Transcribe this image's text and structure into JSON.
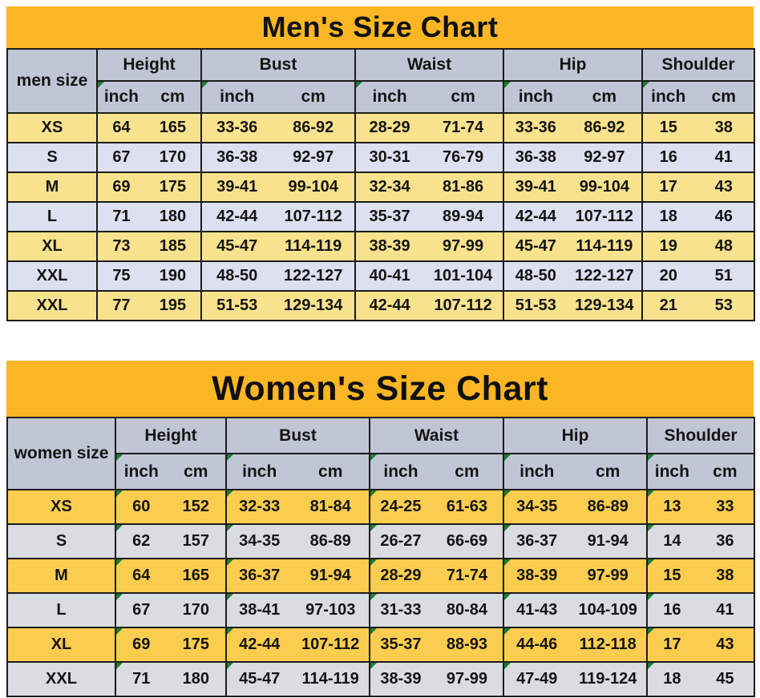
{
  "colors": {
    "title_bg": "#fbb625",
    "header_bg": "#c0c6d5",
    "men_yellow": "#f9e28d",
    "men_blue": "#dce0f0",
    "women_yellow": "#fbcd4e",
    "women_gray": "#d9dce1",
    "border": "#1c1c1c",
    "marker_green": "#1e7b34"
  },
  "men_chart": {
    "title": "Men's Size Chart",
    "corner_label": "men size",
    "columns": [
      "Height",
      "Bust",
      "Waist",
      "Hip",
      "Shoulder"
    ],
    "units": [
      "inch",
      "cm"
    ],
    "rows": [
      {
        "size": "XS",
        "cells": [
          [
            "64",
            "165"
          ],
          [
            "33-36",
            "86-92"
          ],
          [
            "28-29",
            "71-74"
          ],
          [
            "33-36",
            "86-92"
          ],
          [
            "15",
            "38"
          ]
        ]
      },
      {
        "size": "S",
        "cells": [
          [
            "67",
            "170"
          ],
          [
            "36-38",
            "92-97"
          ],
          [
            "30-31",
            "76-79"
          ],
          [
            "36-38",
            "92-97"
          ],
          [
            "16",
            "41"
          ]
        ]
      },
      {
        "size": "M",
        "cells": [
          [
            "69",
            "175"
          ],
          [
            "39-41",
            "99-104"
          ],
          [
            "32-34",
            "81-86"
          ],
          [
            "39-41",
            "99-104"
          ],
          [
            "17",
            "43"
          ]
        ]
      },
      {
        "size": "L",
        "cells": [
          [
            "71",
            "180"
          ],
          [
            "42-44",
            "107-112"
          ],
          [
            "35-37",
            "89-94"
          ],
          [
            "42-44",
            "107-112"
          ],
          [
            "18",
            "46"
          ]
        ]
      },
      {
        "size": "XL",
        "cells": [
          [
            "73",
            "185"
          ],
          [
            "45-47",
            "114-119"
          ],
          [
            "38-39",
            "97-99"
          ],
          [
            "45-47",
            "114-119"
          ],
          [
            "19",
            "48"
          ]
        ]
      },
      {
        "size": "XXL",
        "cells": [
          [
            "75",
            "190"
          ],
          [
            "48-50",
            "122-127"
          ],
          [
            "40-41",
            "101-104"
          ],
          [
            "48-50",
            "122-127"
          ],
          [
            "20",
            "51"
          ]
        ]
      },
      {
        "size": "XXL",
        "cells": [
          [
            "77",
            "195"
          ],
          [
            "51-53",
            "129-134"
          ],
          [
            "42-44",
            "107-112"
          ],
          [
            "51-53",
            "129-134"
          ],
          [
            "21",
            "53"
          ]
        ]
      }
    ]
  },
  "women_chart": {
    "title": "Women's Size Chart",
    "corner_label": "women size",
    "columns": [
      "Height",
      "Bust",
      "Waist",
      "Hip",
      "Shoulder"
    ],
    "units": [
      "inch",
      "cm"
    ],
    "rows": [
      {
        "size": "XS",
        "cells": [
          [
            "60",
            "152"
          ],
          [
            "32-33",
            "81-84"
          ],
          [
            "24-25",
            "61-63"
          ],
          [
            "34-35",
            "86-89"
          ],
          [
            "13",
            "33"
          ]
        ]
      },
      {
        "size": "S",
        "cells": [
          [
            "62",
            "157"
          ],
          [
            "34-35",
            "86-89"
          ],
          [
            "26-27",
            "66-69"
          ],
          [
            "36-37",
            "91-94"
          ],
          [
            "14",
            "36"
          ]
        ]
      },
      {
        "size": "M",
        "cells": [
          [
            "64",
            "165"
          ],
          [
            "36-37",
            "91-94"
          ],
          [
            "28-29",
            "71-74"
          ],
          [
            "38-39",
            "97-99"
          ],
          [
            "15",
            "38"
          ]
        ]
      },
      {
        "size": "L",
        "cells": [
          [
            "67",
            "170"
          ],
          [
            "38-41",
            "97-103"
          ],
          [
            "31-33",
            "80-84"
          ],
          [
            "41-43",
            "104-109"
          ],
          [
            "16",
            "41"
          ]
        ]
      },
      {
        "size": "XL",
        "cells": [
          [
            "69",
            "175"
          ],
          [
            "42-44",
            "107-112"
          ],
          [
            "35-37",
            "88-93"
          ],
          [
            "44-46",
            "112-118"
          ],
          [
            "17",
            "43"
          ]
        ]
      },
      {
        "size": "XXL",
        "cells": [
          [
            "71",
            "180"
          ],
          [
            "45-47",
            "114-119"
          ],
          [
            "38-39",
            "97-99"
          ],
          [
            "47-49",
            "119-124"
          ],
          [
            "18",
            "45"
          ]
        ]
      }
    ]
  }
}
